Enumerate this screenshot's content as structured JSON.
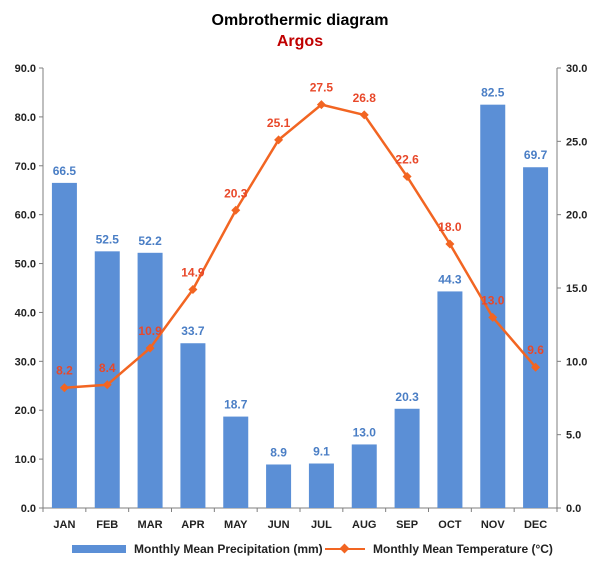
{
  "chart_data": {
    "type": "bar+line",
    "title": "Ombrothermic diagram",
    "subtitle": "Argos",
    "categories": [
      "JAN",
      "FEB",
      "MAR",
      "APR",
      "MAY",
      "JUN",
      "JUL",
      "AUG",
      "SEP",
      "OCT",
      "NOV",
      "DEC"
    ],
    "series": [
      {
        "name": "Monthly Mean Precipitation (mm)",
        "type": "bar",
        "axis": "left",
        "color": "#5B8FD6",
        "label_color": "#4A7EC5",
        "values": [
          66.5,
          52.5,
          52.2,
          33.7,
          18.7,
          8.9,
          9.1,
          13.0,
          20.3,
          44.3,
          82.5,
          69.7
        ],
        "labels": [
          "66.5",
          "52.5",
          "52.2",
          "33.7",
          "18.7",
          "8.9",
          "9.1",
          "13.0",
          "20.3",
          "44.3",
          "82.5",
          "69.7"
        ]
      },
      {
        "name": "Monthly Mean Temperature (°C)",
        "type": "line",
        "axis": "right",
        "color": "#F26522",
        "label_color": "#E8482A",
        "values": [
          8.2,
          8.4,
          10.9,
          14.9,
          20.3,
          25.1,
          27.5,
          26.8,
          22.6,
          18.0,
          13.0,
          9.6
        ],
        "labels": [
          "8.2",
          "8.4",
          "10.9",
          "14.9",
          "20.3",
          "25.1",
          "27.5",
          "26.8",
          "22.6",
          "18.0",
          "13.0",
          "9.6"
        ]
      }
    ],
    "y_left": {
      "ylim": [
        0,
        90
      ],
      "ticks": [
        "0.0",
        "10.0",
        "20.0",
        "30.0",
        "40.0",
        "50.0",
        "60.0",
        "70.0",
        "80.0",
        "90.0"
      ]
    },
    "y_right": {
      "ylim": [
        0,
        30
      ],
      "ticks": [
        "0.0",
        "5.0",
        "10.0",
        "15.0",
        "20.0",
        "25.0",
        "30.0"
      ]
    },
    "grid": false,
    "legend_position": "bottom",
    "colors": {
      "title": "#000000",
      "subtitle": "#C00000",
      "axis": "#7F7F7F"
    }
  }
}
